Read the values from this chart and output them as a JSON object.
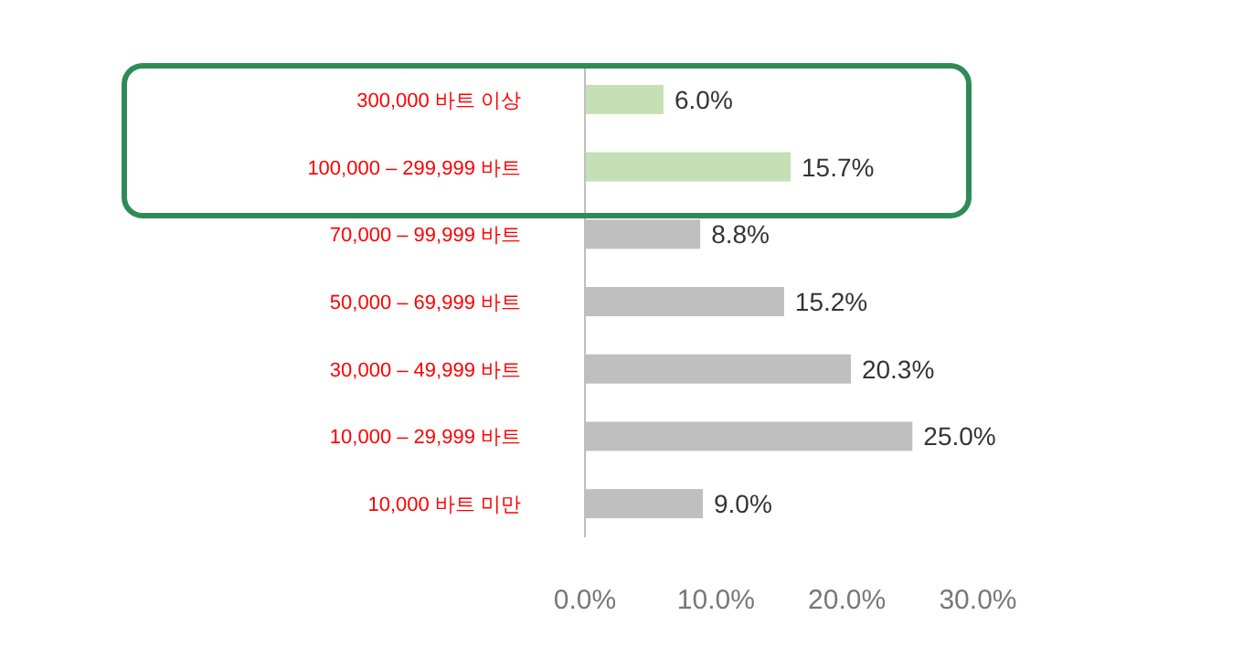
{
  "chart_data": {
    "type": "bar",
    "orientation": "horizontal",
    "categories": [
      "300,000 바트 이상",
      "100,000 – 299,999 바트",
      "70,000 – 99,999 바트",
      "50,000 – 69,999 바트",
      "30,000 – 49,999 바트",
      "10,000 – 29,999 바트",
      "10,000 바트 미만"
    ],
    "values": [
      6.0,
      15.7,
      8.8,
      15.2,
      20.3,
      25.0,
      9.0
    ],
    "colors": [
      "#c5e0b4",
      "#c5e0b4",
      "#bfbfbf",
      "#bfbfbf",
      "#bfbfbf",
      "#bfbfbf",
      "#bfbfbf"
    ],
    "value_labels": [
      "6.0%",
      "15.7%",
      "8.8%",
      "15.2%",
      "20.3%",
      "25.0%",
      "9.0%"
    ],
    "xlim": [
      0,
      30
    ],
    "xticks": [
      {
        "value": 0,
        "label": "0.0%"
      },
      {
        "value": 10,
        "label": "10.0%"
      },
      {
        "value": 20,
        "label": "20.0%"
      },
      {
        "value": 30,
        "label": "30.0%"
      }
    ],
    "grid": false
  }
}
